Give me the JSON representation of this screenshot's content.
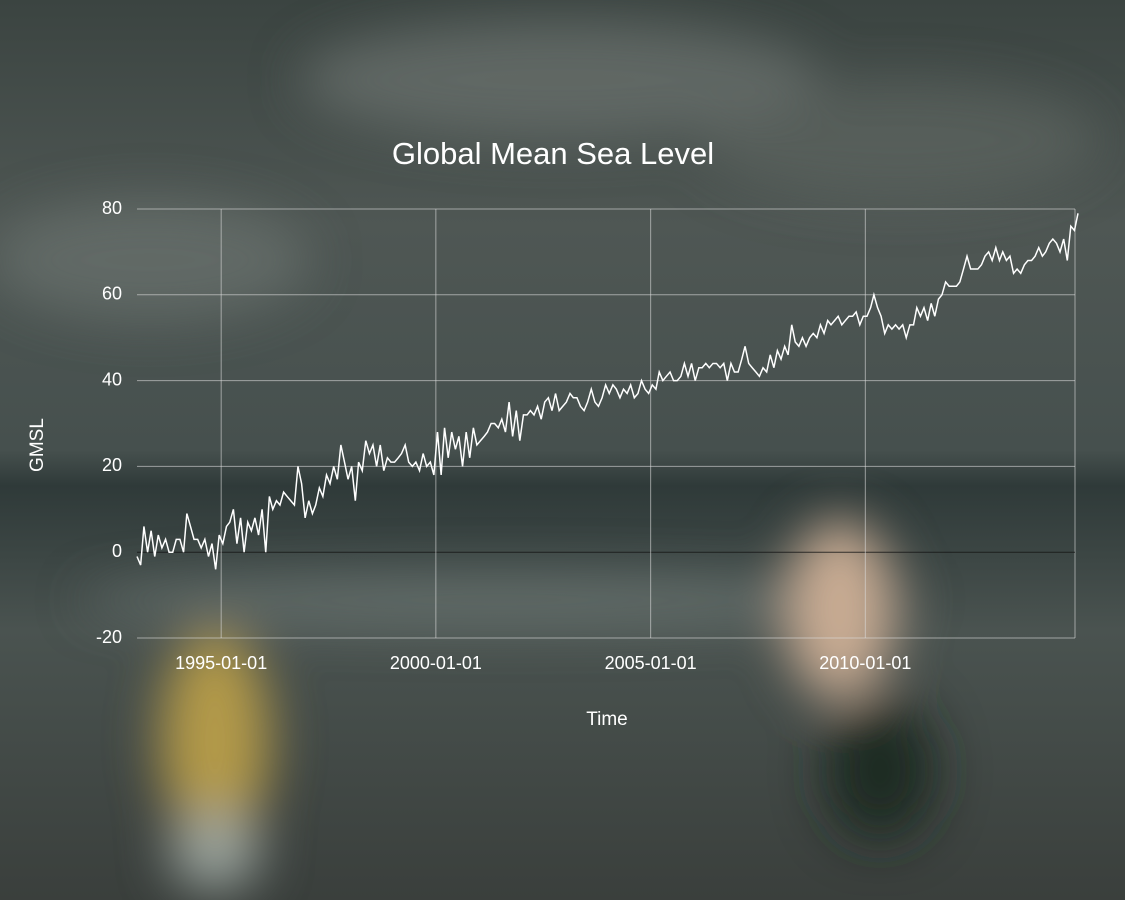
{
  "chart_data": {
    "type": "line",
    "title": "Global Mean Sea Level",
    "x_label": "Time",
    "y_label": "GMSL",
    "color": "#ffffff",
    "grid": true,
    "x": [
      "1993-01-15",
      "1993-02-15",
      "1993-03-15",
      "1993-04-15",
      "1993-05-15",
      "1993-06-15",
      "1993-07-15",
      "1993-08-15",
      "1993-09-15",
      "1993-10-15",
      "1993-11-15",
      "1993-12-15",
      "1994-01-15",
      "1994-02-15",
      "1994-03-15",
      "1994-04-15",
      "1994-05-15",
      "1994-06-15",
      "1994-07-15",
      "1994-08-15",
      "1994-09-15",
      "1994-10-15",
      "1994-11-15",
      "1994-12-15",
      "1995-01-15",
      "1995-02-15",
      "1995-03-15",
      "1995-04-15",
      "1995-05-15",
      "1995-06-15",
      "1995-07-15",
      "1995-08-15",
      "1995-09-15",
      "1995-10-15",
      "1995-11-15",
      "1995-12-15",
      "1996-01-15",
      "1996-02-15",
      "1996-03-15",
      "1996-04-15",
      "1996-05-15",
      "1996-06-15",
      "1996-07-15",
      "1996-08-15",
      "1996-09-15",
      "1996-10-15",
      "1996-11-15",
      "1996-12-15",
      "1997-01-15",
      "1997-02-15",
      "1997-03-15",
      "1997-04-15",
      "1997-05-15",
      "1997-06-15",
      "1997-07-15",
      "1997-08-15",
      "1997-09-15",
      "1997-10-15",
      "1997-11-15",
      "1997-12-15",
      "1998-01-15",
      "1998-02-15",
      "1998-03-15",
      "1998-04-15",
      "1998-05-15",
      "1998-06-15",
      "1998-07-15",
      "1998-08-15",
      "1998-09-15",
      "1998-10-15",
      "1998-11-15",
      "1998-12-15",
      "1999-01-15",
      "1999-02-15",
      "1999-03-15",
      "1999-04-15",
      "1999-05-15",
      "1999-06-15",
      "1999-07-15",
      "1999-08-15",
      "1999-09-15",
      "1999-10-15",
      "1999-11-15",
      "1999-12-15",
      "2000-01-15",
      "2000-02-15",
      "2000-03-15",
      "2000-04-15",
      "2000-05-15",
      "2000-06-15",
      "2000-07-15",
      "2000-08-15",
      "2000-09-15",
      "2000-10-15",
      "2000-11-15",
      "2000-12-15",
      "2001-01-15",
      "2001-02-15",
      "2001-03-15",
      "2001-04-15",
      "2001-05-15",
      "2001-06-15",
      "2001-07-15",
      "2001-08-15",
      "2001-09-15",
      "2001-10-15",
      "2001-11-15",
      "2001-12-15",
      "2002-01-15",
      "2002-02-15",
      "2002-03-15",
      "2002-04-15",
      "2002-05-15",
      "2002-06-15",
      "2002-07-15",
      "2002-08-15",
      "2002-09-15",
      "2002-10-15",
      "2002-11-15",
      "2002-12-15",
      "2003-01-15",
      "2003-02-15",
      "2003-03-15",
      "2003-04-15",
      "2003-05-15",
      "2003-06-15",
      "2003-07-15",
      "2003-08-15",
      "2003-09-15",
      "2003-10-15",
      "2003-11-15",
      "2003-12-15",
      "2004-01-15",
      "2004-02-15",
      "2004-03-15",
      "2004-04-15",
      "2004-05-15",
      "2004-06-15",
      "2004-07-15",
      "2004-08-15",
      "2004-09-15",
      "2004-10-15",
      "2004-11-15",
      "2004-12-15",
      "2005-01-15",
      "2005-02-15",
      "2005-03-15",
      "2005-04-15",
      "2005-05-15",
      "2005-06-15",
      "2005-07-15",
      "2005-08-15",
      "2005-09-15",
      "2005-10-15",
      "2005-11-15",
      "2005-12-15",
      "2006-01-15",
      "2006-02-15",
      "2006-03-15",
      "2006-04-15",
      "2006-05-15",
      "2006-06-15",
      "2006-07-15",
      "2006-08-15",
      "2006-09-15",
      "2006-10-15",
      "2006-11-15",
      "2006-12-15",
      "2007-01-15",
      "2007-02-15",
      "2007-03-15",
      "2007-04-15",
      "2007-05-15",
      "2007-06-15",
      "2007-07-15",
      "2007-08-15",
      "2007-09-15",
      "2007-10-15",
      "2007-11-15",
      "2007-12-15",
      "2008-01-15",
      "2008-02-15",
      "2008-03-15",
      "2008-04-15",
      "2008-05-15",
      "2008-06-15",
      "2008-07-15",
      "2008-08-15",
      "2008-09-15",
      "2008-10-15",
      "2008-11-15",
      "2008-12-15",
      "2009-01-15",
      "2009-02-15",
      "2009-03-15",
      "2009-04-15",
      "2009-05-15",
      "2009-06-15",
      "2009-07-15",
      "2009-08-15",
      "2009-09-15",
      "2009-10-15",
      "2009-11-15",
      "2009-12-15",
      "2010-01-15",
      "2010-02-15",
      "2010-03-15",
      "2010-04-15",
      "2010-05-15",
      "2010-06-15",
      "2010-07-15",
      "2010-08-15",
      "2010-09-15",
      "2010-10-15",
      "2010-11-15",
      "2010-12-15",
      "2011-01-15",
      "2011-02-15",
      "2011-03-15",
      "2011-04-15",
      "2011-05-15",
      "2011-06-15",
      "2011-07-15",
      "2011-08-15",
      "2011-09-15",
      "2011-10-15",
      "2011-11-15",
      "2011-12-15",
      "2012-01-15",
      "2012-02-15",
      "2012-03-15",
      "2012-04-15",
      "2012-05-15",
      "2012-06-15",
      "2012-07-15",
      "2012-08-15",
      "2012-09-15",
      "2012-10-15",
      "2012-11-15",
      "2012-12-15",
      "2013-01-15",
      "2013-02-15",
      "2013-03-15",
      "2013-04-15",
      "2013-05-15",
      "2013-06-15",
      "2013-07-15",
      "2013-08-15",
      "2013-09-15",
      "2013-10-15",
      "2013-11-15",
      "2013-12-15",
      "2014-01-15",
      "2014-02-15",
      "2014-03-15",
      "2014-04-15",
      "2014-05-15",
      "2014-06-15",
      "2014-07-15",
      "2014-08-15",
      "2014-09-15",
      "2014-10-15",
      "2014-11-15",
      "2014-12-15"
    ],
    "values": [
      -1,
      -3,
      6,
      0,
      5,
      -1,
      4,
      1,
      3,
      0,
      0,
      3,
      3,
      0,
      9,
      6,
      3,
      3,
      1,
      3,
      -1,
      2,
      -4,
      4,
      2,
      6,
      7,
      10,
      2,
      8,
      0,
      7,
      5,
      8,
      4,
      10,
      0,
      13,
      10,
      12,
      11,
      14,
      13,
      12,
      11,
      20,
      16,
      8,
      12,
      9,
      11,
      15,
      13,
      18,
      16,
      20,
      17,
      25,
      21,
      17,
      20,
      12,
      21,
      19,
      26,
      23,
      25,
      20,
      25,
      19,
      22,
      21,
      21,
      22,
      23,
      25,
      21,
      20,
      21,
      19,
      23,
      20,
      21,
      18,
      28,
      18,
      29,
      22,
      28,
      24,
      27,
      20,
      28,
      22,
      29,
      25,
      26,
      27,
      28,
      30,
      30,
      29,
      31,
      28,
      35,
      27,
      33,
      26,
      32,
      32,
      33,
      32,
      34,
      31,
      35,
      36,
      33,
      37,
      33,
      34,
      35,
      37,
      36,
      36,
      34,
      33,
      35,
      38,
      35,
      34,
      36,
      39,
      37,
      39,
      38,
      36,
      38,
      37,
      39,
      36,
      37,
      40,
      38,
      37,
      39,
      38,
      42,
      40,
      41,
      42,
      40,
      40,
      41,
      44,
      41,
      44,
      40,
      43,
      43,
      44,
      43,
      44,
      44,
      43,
      44,
      40,
      44,
      42,
      42,
      45,
      48,
      44,
      43,
      42,
      41,
      43,
      42,
      46,
      43,
      47,
      45,
      48,
      46,
      53,
      49,
      48,
      50,
      48,
      50,
      51,
      50,
      53,
      51,
      54,
      53,
      54,
      55,
      53,
      54,
      55,
      55,
      56,
      53,
      55,
      55,
      57,
      60,
      57,
      55,
      51,
      53,
      52,
      53,
      52,
      53,
      50,
      53,
      53,
      57,
      55,
      57,
      54,
      58,
      55,
      59,
      60,
      63,
      62,
      62,
      62,
      63,
      66,
      69,
      66,
      66,
      66,
      67,
      69,
      70,
      68,
      71,
      68,
      70,
      68,
      69,
      65,
      66,
      65,
      67,
      68,
      68,
      69,
      71,
      69,
      70,
      72,
      73,
      72,
      70,
      73,
      68,
      76,
      75,
      79
    ],
    "xlim": [
      "1993-01-15",
      "2014-12-15"
    ],
    "xticks": [
      "1995-01-01",
      "2000-01-01",
      "2005-01-01",
      "2010-01-01"
    ],
    "ylim": [
      -20,
      80
    ],
    "yticks": [
      -20,
      0,
      20,
      40,
      60,
      80
    ]
  }
}
